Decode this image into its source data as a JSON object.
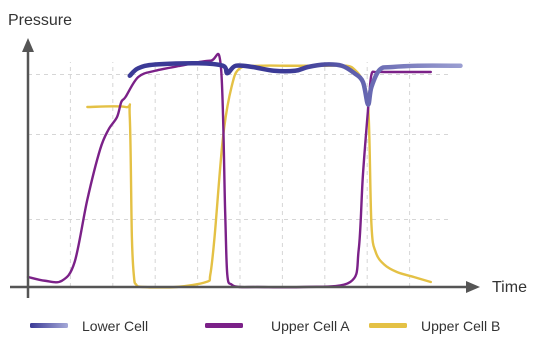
{
  "chart_data": {
    "type": "line",
    "title": "",
    "xlabel": "Time",
    "ylabel": "Pressure",
    "xlim": [
      0,
      100
    ],
    "ylim": [
      0,
      100
    ],
    "grid": true,
    "legend_position": "bottom",
    "series": [
      {
        "name": "Lower Cell",
        "color": "#3b3a96",
        "color_end": "#a5a9d8",
        "x": [
          24,
          26,
          30,
          40,
          46,
          47,
          49,
          53,
          58,
          63,
          66,
          70,
          74,
          77,
          79,
          80.2,
          81,
          83,
          86,
          92,
          102
        ],
        "y": [
          84.5,
          87.5,
          89,
          89.5,
          88.5,
          85.5,
          88.5,
          88,
          86.5,
          86.5,
          88,
          89,
          88.5,
          85.5,
          82,
          73,
          80,
          87,
          88,
          88.5,
          88.5
        ]
      },
      {
        "name": "Upper Cell A",
        "color": "#7b2188",
        "x": [
          0,
          4,
          8,
          11,
          14,
          17,
          19,
          21,
          22,
          23,
          26,
          30,
          36,
          43,
          45.5,
          46.5,
          47,
          48,
          50,
          54,
          65,
          76,
          78,
          79,
          80.4,
          81,
          82,
          85,
          95
        ],
        "y": [
          4,
          2.5,
          2.5,
          10,
          35,
          55,
          63,
          68,
          74,
          76,
          84,
          86.5,
          88.5,
          90.5,
          88,
          30,
          5,
          1,
          0,
          0,
          0,
          2,
          15,
          45,
          75,
          85,
          86,
          86,
          86
        ]
      },
      {
        "name": "Upper Cell B",
        "color": "#e4c145",
        "x": [
          14,
          23,
          24,
          24.5,
          25,
          25.5,
          27,
          35,
          42,
          43,
          44,
          46,
          48,
          50,
          55,
          62,
          70,
          75,
          77,
          79,
          80.3,
          81,
          82,
          84,
          87,
          91,
          95
        ],
        "y": [
          72,
          72,
          68,
          20,
          4,
          1,
          0,
          0,
          2,
          5,
          20,
          60,
          80,
          87.5,
          88.5,
          88.5,
          88.5,
          88.5,
          87,
          82,
          70,
          25,
          14,
          9,
          6,
          4,
          2
        ]
      }
    ]
  }
}
